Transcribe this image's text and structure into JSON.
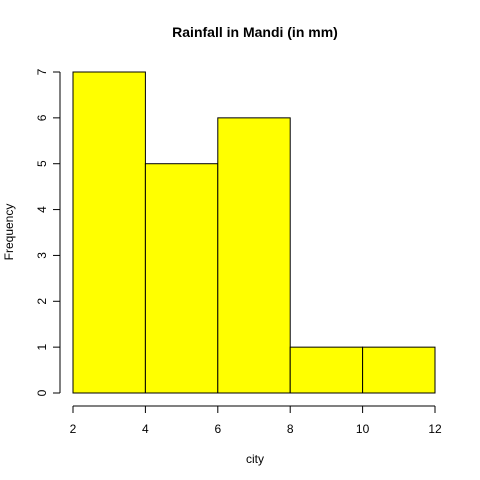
{
  "chart_data": {
    "type": "bar",
    "title": "Rainfall in Mandi (in mm)",
    "xlabel": "city",
    "ylabel": "Frequency",
    "bins": [
      [
        2,
        4
      ],
      [
        4,
        6
      ],
      [
        6,
        8
      ],
      [
        8,
        10
      ],
      [
        10,
        12
      ]
    ],
    "values": [
      7,
      5,
      6,
      1,
      1
    ],
    "xticks": [
      2,
      4,
      6,
      8,
      10,
      12
    ],
    "yticks": [
      0,
      1,
      2,
      3,
      4,
      5,
      6,
      7
    ],
    "xlim": [
      2,
      12
    ],
    "ylim": [
      0,
      7
    ],
    "bar_color": "#ffff00",
    "grid": false
  }
}
